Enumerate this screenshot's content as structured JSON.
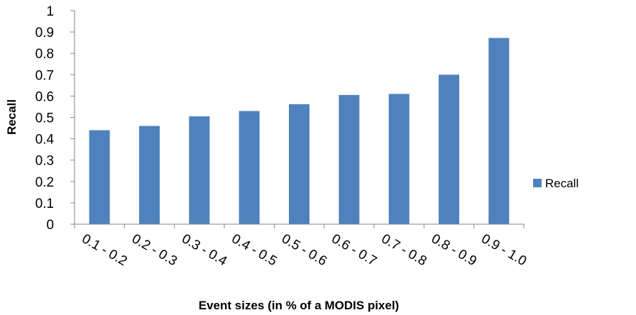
{
  "chart_data": {
    "type": "bar",
    "categories": [
      "0.1 - 0.2",
      "0.2 - 0.3",
      "0.3 - 0.4",
      "0.4 - 0.5",
      "0.5 - 0.6",
      "0.6 - 0.7",
      "0.7 - 0.8",
      "0.8 - 0.9",
      "0.9 - 1.0"
    ],
    "series": [
      {
        "name": "Recall",
        "values": [
          0.44,
          0.46,
          0.505,
          0.53,
          0.562,
          0.605,
          0.61,
          0.7,
          0.872
        ]
      }
    ],
    "xlabel": "Event sizes (in % of a MODIS pixel)",
    "ylabel": "Recall",
    "ylim": [
      0,
      1
    ],
    "yticks": [
      0,
      0.1,
      0.2,
      0.3,
      0.4,
      0.5,
      0.6,
      0.7,
      0.8,
      0.9,
      1
    ],
    "ytick_labels": [
      "0",
      "0.1",
      "0.2",
      "0.3",
      "0.4",
      "0.5",
      "0.6",
      "0.7",
      "0.8",
      "0.9",
      "1"
    ],
    "legend": {
      "position": "right",
      "entries": [
        "Recall"
      ]
    },
    "grid": false,
    "colors": {
      "bar": "#4F81BD",
      "axis": "#868686"
    }
  }
}
